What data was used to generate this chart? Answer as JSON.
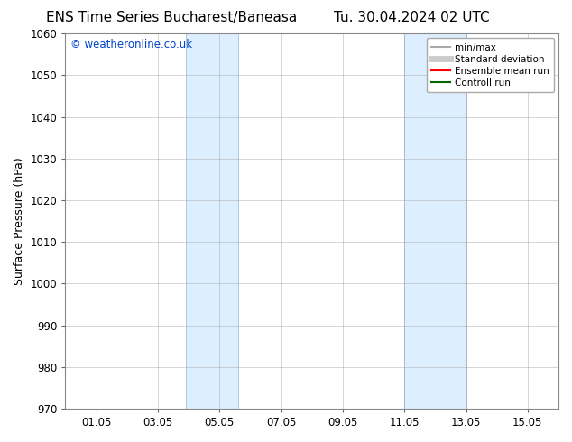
{
  "title_left": "ENS Time Series Bucharest/Baneasa",
  "title_right": "Tu. 30.04.2024 02 UTC",
  "ylabel": "Surface Pressure (hPa)",
  "ylim": [
    970,
    1060
  ],
  "yticks": [
    970,
    980,
    990,
    1000,
    1010,
    1020,
    1030,
    1040,
    1050,
    1060
  ],
  "xtick_labels": [
    "01.05",
    "03.05",
    "05.05",
    "07.05",
    "09.05",
    "11.05",
    "13.05",
    "15.05"
  ],
  "xtick_positions": [
    1,
    3,
    5,
    7,
    9,
    11,
    13,
    15
  ],
  "xlim": [
    0,
    16
  ],
  "shaded_bands": [
    {
      "x_start": 3.9,
      "x_end": 5.6
    },
    {
      "x_start": 11.0,
      "x_end": 13.0
    }
  ],
  "shade_color": "#ddeeff",
  "shade_edge_color": "#aaccdd",
  "watermark": "© weatheronline.co.uk",
  "watermark_color": "#0044cc",
  "legend_items": [
    {
      "label": "min/max",
      "color": "#aaaaaa",
      "lw": 1.5
    },
    {
      "label": "Standard deviation",
      "color": "#cccccc",
      "lw": 5
    },
    {
      "label": "Ensemble mean run",
      "color": "#ff0000",
      "lw": 1.5
    },
    {
      "label": "Controll run",
      "color": "#006600",
      "lw": 1.5
    }
  ],
  "bg_color": "#ffffff",
  "grid_color": "#aaaaaa",
  "title_fontsize": 11,
  "ylabel_fontsize": 9,
  "tick_fontsize": 8.5,
  "legend_fontsize": 7.5,
  "watermark_fontsize": 8.5
}
